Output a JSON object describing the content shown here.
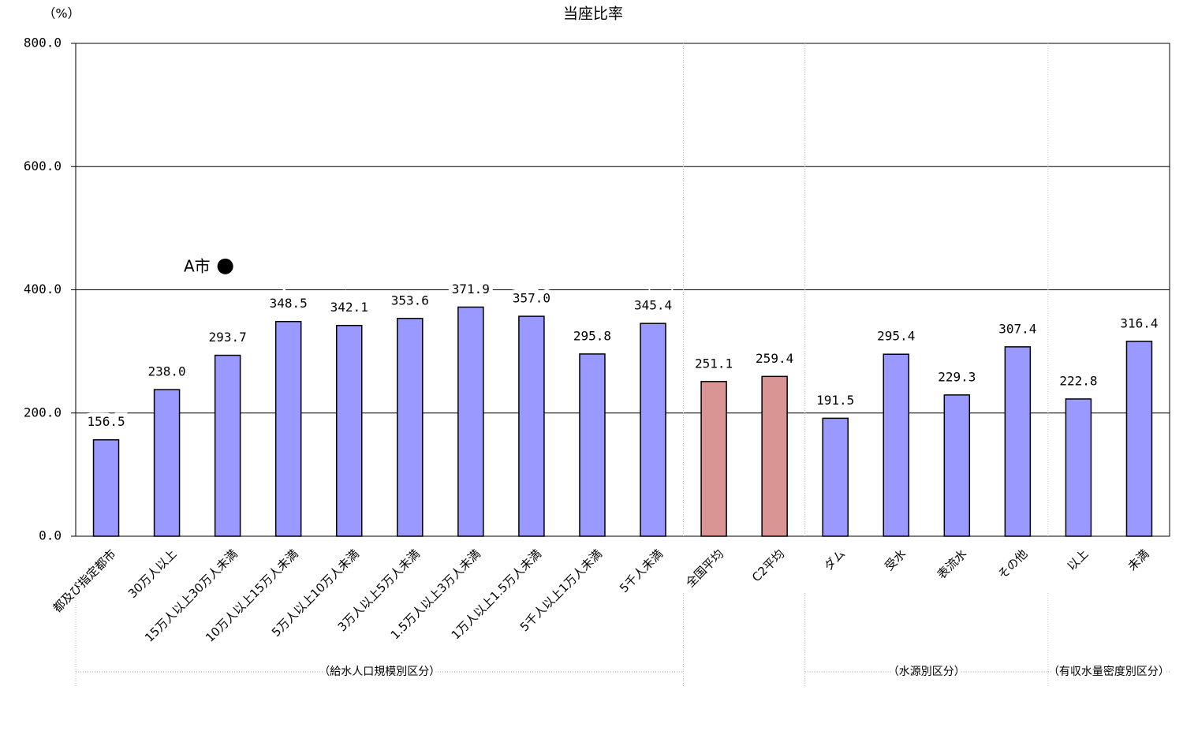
{
  "chart_data": {
    "type": "bar",
    "title": "当座比率",
    "y_unit": "（%）",
    "categories": [
      "都及び指定都市",
      "30万人以上",
      "15万人以上30万人未満",
      "10万人以上15万人未満",
      "5万人以上10万人未満",
      "3万人以上5万人未満",
      "1.5万人以上3万人未満",
      "1万人以上1.5万人未満",
      "5千人以上1万人未満",
      "5千人未満",
      "全国平均",
      "C2平均",
      "ダム",
      "受水",
      "表流水",
      "その他",
      "以上",
      "未満"
    ],
    "values": [
      156.5,
      238.0,
      293.7,
      348.5,
      342.1,
      353.6,
      371.9,
      357.0,
      295.8,
      345.4,
      251.1,
      259.4,
      191.5,
      295.4,
      229.3,
      307.4,
      222.8,
      316.4
    ],
    "value_labels": [
      "156.5",
      "238.0",
      "293.7",
      "348.5",
      "342.1",
      "353.6",
      "371.9",
      "357.0",
      "295.8",
      "345.4",
      "251.1",
      "259.4",
      "191.5",
      "295.4",
      "229.3",
      "307.4",
      "222.8",
      "316.4"
    ],
    "colors": [
      "#9999ff",
      "#9999ff",
      "#9999ff",
      "#9999ff",
      "#9999ff",
      "#9999ff",
      "#9999ff",
      "#9999ff",
      "#9999ff",
      "#9999ff",
      "#d99594",
      "#d99594",
      "#9999ff",
      "#9999ff",
      "#9999ff",
      "#9999ff",
      "#9999ff",
      "#9999ff"
    ],
    "ylim": [
      0,
      800
    ],
    "yticks": [
      {
        "value": 0,
        "label": "0.0"
      },
      {
        "value": 200,
        "label": "200.0"
      },
      {
        "value": 400,
        "label": "400.0"
      },
      {
        "value": 600,
        "label": "600.0"
      },
      {
        "value": 800,
        "label": "800.0"
      }
    ],
    "grid": true,
    "annotation": {
      "text": "A市",
      "category": 2,
      "value": 438
    },
    "groups": [
      {
        "label": "（給水人口規模別区分）",
        "span": [
          0,
          9
        ]
      },
      {
        "label": "（水源別区分）",
        "span": [
          12,
          15
        ]
      },
      {
        "label": "（有収水量密度別区分）",
        "span": [
          16,
          17
        ]
      }
    ]
  }
}
